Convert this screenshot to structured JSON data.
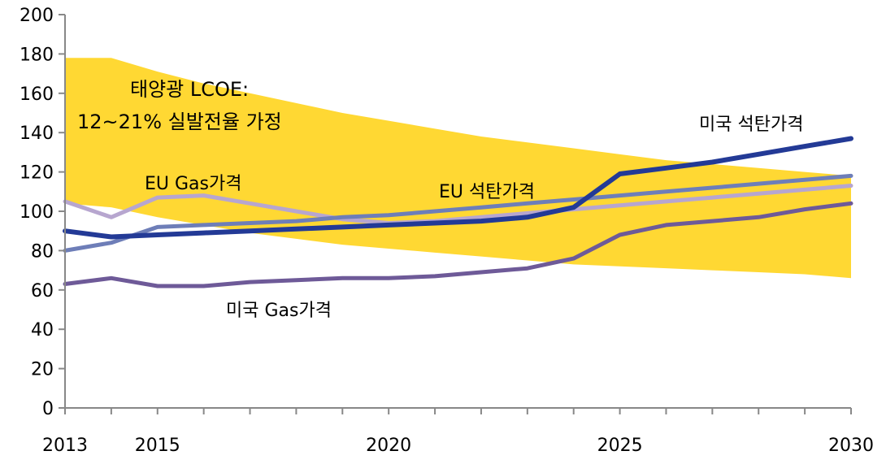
{
  "chart_data": {
    "type": "line",
    "title": "",
    "xlabel": "",
    "ylabel": "",
    "xlim": [
      2013,
      2030
    ],
    "ylim": [
      0,
      200
    ],
    "x_ticks": [
      2013,
      2015,
      2020,
      2025,
      2030
    ],
    "y_ticks": [
      0,
      20,
      40,
      60,
      80,
      100,
      120,
      140,
      160,
      180,
      200
    ],
    "grid": false,
    "legend": "none",
    "band": {
      "label_line1": "태양광 LCOE:",
      "label_line2": "12~21% 실발전율 가정",
      "color": "#FFD833",
      "x": [
        2013,
        2014,
        2015,
        2016,
        2017,
        2018,
        2019,
        2020,
        2021,
        2022,
        2023,
        2024,
        2025,
        2026,
        2027,
        2028,
        2029,
        2030
      ],
      "upper": [
        178,
        178,
        171,
        165,
        160,
        155,
        150,
        146,
        142,
        138,
        135,
        132,
        129,
        126,
        124,
        122,
        120,
        118
      ],
      "lower": [
        104,
        102,
        97,
        93,
        89,
        86,
        83,
        81,
        79,
        77,
        75,
        73,
        72,
        71,
        70,
        69,
        68,
        66
      ]
    },
    "series": [
      {
        "name": "미국 석탄가격",
        "color": "#233A96",
        "x": [
          2013,
          2014,
          2015,
          2016,
          2017,
          2018,
          2019,
          2020,
          2021,
          2022,
          2023,
          2024,
          2025,
          2026,
          2027,
          2028,
          2029,
          2030
        ],
        "values": [
          90,
          87,
          88,
          89,
          90,
          91,
          92,
          93,
          94,
          95,
          97,
          102,
          119,
          122,
          125,
          129,
          133,
          137
        ]
      },
      {
        "name": "EU 석탄가격",
        "color": "#6E7EB8",
        "x": [
          2013,
          2014,
          2015,
          2016,
          2017,
          2018,
          2019,
          2020,
          2021,
          2022,
          2023,
          2024,
          2025,
          2026,
          2027,
          2028,
          2029,
          2030
        ],
        "values": [
          80,
          84,
          92,
          93,
          94,
          95,
          97,
          98,
          100,
          102,
          104,
          106,
          108,
          110,
          112,
          114,
          116,
          118
        ]
      },
      {
        "name": "EU Gas가격",
        "color": "#B7A6CF",
        "x": [
          2013,
          2014,
          2015,
          2016,
          2017,
          2018,
          2019,
          2020,
          2021,
          2022,
          2023,
          2024,
          2025,
          2026,
          2027,
          2028,
          2029,
          2030
        ],
        "values": [
          105,
          97,
          107,
          108,
          104,
          100,
          96,
          94,
          95,
          97,
          99,
          101,
          103,
          105,
          107,
          109,
          111,
          113
        ]
      },
      {
        "name": "미국 Gas가격",
        "color": "#6E5A98",
        "x": [
          2013,
          2014,
          2015,
          2016,
          2017,
          2018,
          2019,
          2020,
          2021,
          2022,
          2023,
          2024,
          2025,
          2026,
          2027,
          2028,
          2029,
          2030
        ],
        "values": [
          63,
          66,
          62,
          62,
          64,
          65,
          66,
          66,
          67,
          69,
          71,
          76,
          88,
          93,
          95,
          97,
          101,
          104
        ]
      }
    ]
  }
}
